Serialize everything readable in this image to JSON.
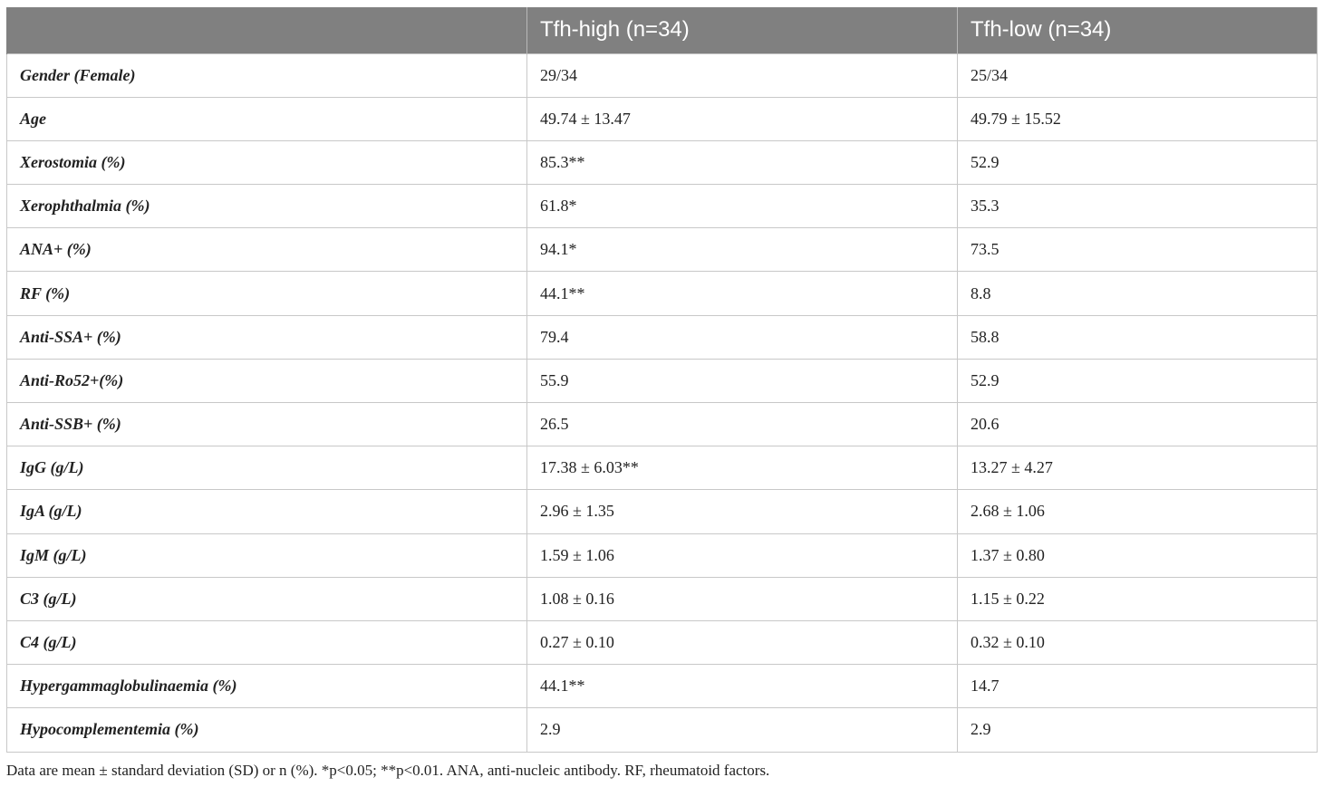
{
  "table": {
    "headers": [
      "",
      "Tfh-high (n=34)",
      "Tfh-low (n=34)"
    ],
    "rows": [
      [
        "Gender (Female)",
        "29/34",
        "25/34"
      ],
      [
        "Age",
        "49.74 ± 13.47",
        "49.79 ± 15.52"
      ],
      [
        "Xerostomia (%)",
        "85.3**",
        "52.9"
      ],
      [
        "Xerophthalmia (%)",
        "61.8*",
        "35.3"
      ],
      [
        "ANA+ (%)",
        "94.1*",
        "73.5"
      ],
      [
        "RF (%)",
        "44.1**",
        "8.8"
      ],
      [
        "Anti-SSA+ (%)",
        "79.4",
        "58.8"
      ],
      [
        "Anti-Ro52+(%)",
        "55.9",
        "52.9"
      ],
      [
        "Anti-SSB+ (%)",
        "26.5",
        "20.6"
      ],
      [
        "IgG (g/L)",
        "17.38 ± 6.03**",
        "13.27 ± 4.27"
      ],
      [
        "IgA (g/L)",
        "2.96 ± 1.35",
        "2.68 ± 1.06"
      ],
      [
        "IgM (g/L)",
        "1.59 ± 1.06",
        "1.37 ± 0.80"
      ],
      [
        "C3 (g/L)",
        "1.08 ± 0.16",
        "1.15 ± 0.22"
      ],
      [
        "C4 (g/L)",
        "0.27 ± 0.10",
        "0.32 ± 0.10"
      ],
      [
        "Hypergammaglobulinaemia (%)",
        "44.1**",
        "14.7"
      ],
      [
        "Hypocomplementemia (%)",
        "2.9",
        "2.9"
      ]
    ]
  },
  "footnote": "Data are mean ± standard deviation (SD) or n (%). *p<0.05; **p<0.01. ANA, anti-nucleic antibody. RF, rheumatoid factors."
}
